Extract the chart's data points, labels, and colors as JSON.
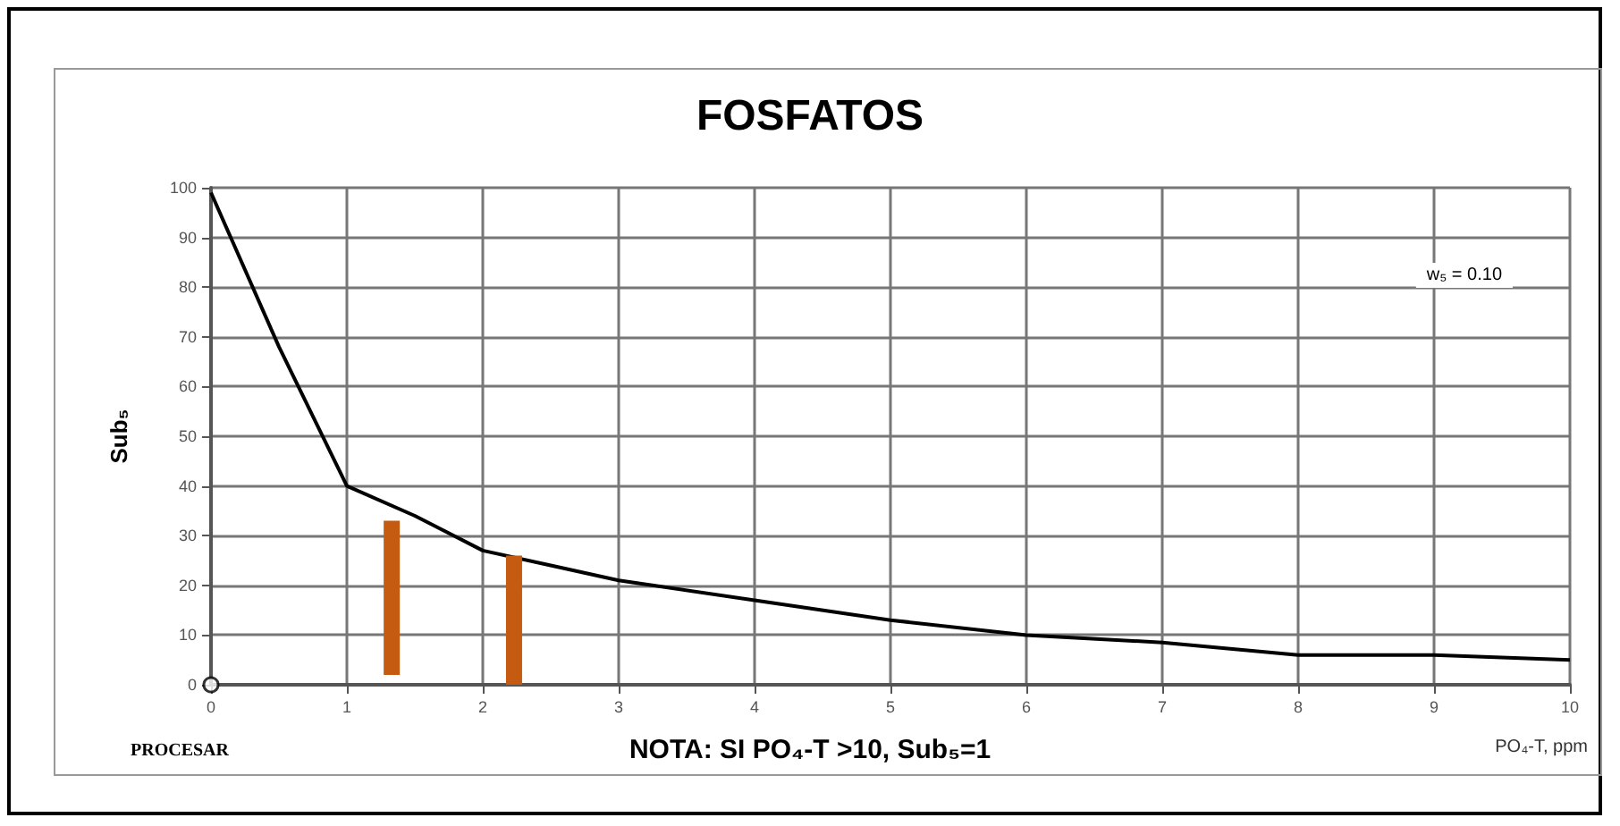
{
  "chart_data": {
    "type": "line",
    "title": "FOSFATOS",
    "xlabel": "PO₄-T, ppm",
    "ylabel": "Sub₅",
    "annotations": [
      "w₅ = 0.10",
      "PROCESAR",
      "NOTA: SI PO₄-T >10, Sub₅=1"
    ],
    "series": [
      {
        "color": "#000000",
        "x": [
          0,
          0.5,
          1,
          1.5,
          2,
          2.5,
          3,
          4,
          5,
          6,
          7,
          8,
          9,
          10
        ],
        "values": [
          99,
          68,
          40,
          34,
          27,
          24,
          21,
          17,
          13,
          10,
          8.5,
          6,
          6,
          5
        ]
      },
      {
        "type": "bar",
        "color": "#c55a11",
        "x": [
          1.33,
          2.23
        ],
        "base": [
          2,
          0
        ],
        "values": [
          31,
          26
        ]
      },
      {
        "type": "scatter",
        "color": "#000000",
        "marker": "circle",
        "x": [
          0
        ],
        "values": [
          0
        ]
      }
    ],
    "xlim": [
      0,
      10
    ],
    "xticks": [
      0,
      1,
      2,
      3,
      4,
      5,
      6,
      7,
      8,
      9,
      10
    ],
    "ylim": [
      0,
      100
    ],
    "yticks": [
      0,
      10,
      20,
      30,
      40,
      50,
      60,
      70,
      80,
      90,
      100
    ],
    "grid": true,
    "marker": "none",
    "line_style": "solid"
  }
}
